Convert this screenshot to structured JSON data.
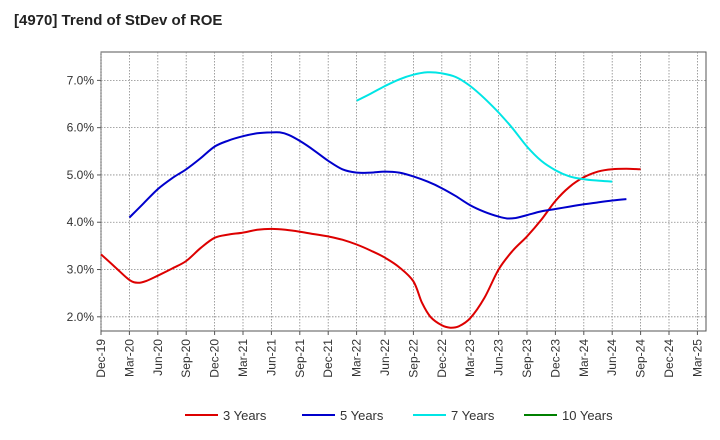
{
  "chart_data": {
    "type": "line",
    "title": "[4970]  Trend of StDev of ROE",
    "x_labels": [
      "Dec-19",
      "Mar-20",
      "Jun-20",
      "Sep-20",
      "Dec-20",
      "Mar-21",
      "Jun-21",
      "Sep-21",
      "Dec-21",
      "Mar-22",
      "Jun-22",
      "Sep-22",
      "Dec-22",
      "Mar-23",
      "Jun-23",
      "Sep-23",
      "Dec-23",
      "Mar-24",
      "Jun-24",
      "Sep-24",
      "Dec-24",
      "Mar-25"
    ],
    "y_ticks": [
      "2.0%",
      "3.0%",
      "4.0%",
      "5.0%",
      "6.0%",
      "7.0%"
    ],
    "ylim": [
      1.7,
      7.6
    ],
    "grid": true,
    "legend_position": "bottom",
    "series": [
      {
        "name": "3 Years",
        "color": "#dd0000",
        "points": [
          [
            0,
            3.32
          ],
          [
            0.5,
            3.05
          ],
          [
            1,
            2.78
          ],
          [
            1.3,
            2.72
          ],
          [
            1.6,
            2.76
          ],
          [
            2,
            2.87
          ],
          [
            2.5,
            3.02
          ],
          [
            3,
            3.18
          ],
          [
            3.5,
            3.45
          ],
          [
            4,
            3.67
          ],
          [
            4.5,
            3.74
          ],
          [
            5,
            3.78
          ],
          [
            5.5,
            3.84
          ],
          [
            6,
            3.86
          ],
          [
            6.5,
            3.84
          ],
          [
            7,
            3.8
          ],
          [
            7.5,
            3.75
          ],
          [
            8,
            3.7
          ],
          [
            8.5,
            3.63
          ],
          [
            9,
            3.53
          ],
          [
            9.5,
            3.4
          ],
          [
            10,
            3.25
          ],
          [
            10.5,
            3.05
          ],
          [
            11,
            2.75
          ],
          [
            11.3,
            2.3
          ],
          [
            11.6,
            2.0
          ],
          [
            12,
            1.82
          ],
          [
            12.3,
            1.77
          ],
          [
            12.6,
            1.8
          ],
          [
            13,
            1.97
          ],
          [
            13.5,
            2.4
          ],
          [
            14,
            3.0
          ],
          [
            14.5,
            3.4
          ],
          [
            15,
            3.7
          ],
          [
            15.5,
            4.05
          ],
          [
            16,
            4.45
          ],
          [
            16.5,
            4.75
          ],
          [
            17,
            4.95
          ],
          [
            17.5,
            5.07
          ],
          [
            18,
            5.12
          ],
          [
            18.5,
            5.13
          ],
          [
            19,
            5.12
          ]
        ]
      },
      {
        "name": "5 Years",
        "color": "#0000cc",
        "points": [
          [
            1,
            4.1
          ],
          [
            1.5,
            4.4
          ],
          [
            2,
            4.7
          ],
          [
            2.5,
            4.93
          ],
          [
            3,
            5.12
          ],
          [
            3.5,
            5.35
          ],
          [
            4,
            5.6
          ],
          [
            4.5,
            5.73
          ],
          [
            5,
            5.82
          ],
          [
            5.5,
            5.88
          ],
          [
            6,
            5.9
          ],
          [
            6.3,
            5.9
          ],
          [
            6.6,
            5.85
          ],
          [
            7,
            5.72
          ],
          [
            7.5,
            5.52
          ],
          [
            8,
            5.3
          ],
          [
            8.5,
            5.12
          ],
          [
            9,
            5.05
          ],
          [
            9.5,
            5.05
          ],
          [
            10,
            5.07
          ],
          [
            10.5,
            5.05
          ],
          [
            11,
            4.97
          ],
          [
            11.5,
            4.86
          ],
          [
            12,
            4.72
          ],
          [
            12.5,
            4.55
          ],
          [
            13,
            4.36
          ],
          [
            13.5,
            4.22
          ],
          [
            14,
            4.12
          ],
          [
            14.3,
            4.08
          ],
          [
            14.6,
            4.09
          ],
          [
            15,
            4.15
          ],
          [
            15.5,
            4.23
          ],
          [
            16,
            4.28
          ],
          [
            16.5,
            4.33
          ],
          [
            17,
            4.38
          ],
          [
            17.5,
            4.42
          ],
          [
            18,
            4.46
          ],
          [
            18.5,
            4.49
          ]
        ]
      },
      {
        "name": "7 Years",
        "color": "#00e5e5",
        "points": [
          [
            9,
            6.57
          ],
          [
            9.5,
            6.72
          ],
          [
            10,
            6.88
          ],
          [
            10.5,
            7.02
          ],
          [
            11,
            7.12
          ],
          [
            11.5,
            7.17
          ],
          [
            12,
            7.15
          ],
          [
            12.5,
            7.07
          ],
          [
            13,
            6.88
          ],
          [
            13.5,
            6.62
          ],
          [
            14,
            6.32
          ],
          [
            14.5,
            5.98
          ],
          [
            15,
            5.6
          ],
          [
            15.5,
            5.3
          ],
          [
            16,
            5.1
          ],
          [
            16.5,
            4.97
          ],
          [
            17,
            4.91
          ],
          [
            17.5,
            4.88
          ],
          [
            18,
            4.86
          ]
        ]
      },
      {
        "name": "10 Years",
        "color": "#008000",
        "points": []
      }
    ]
  }
}
